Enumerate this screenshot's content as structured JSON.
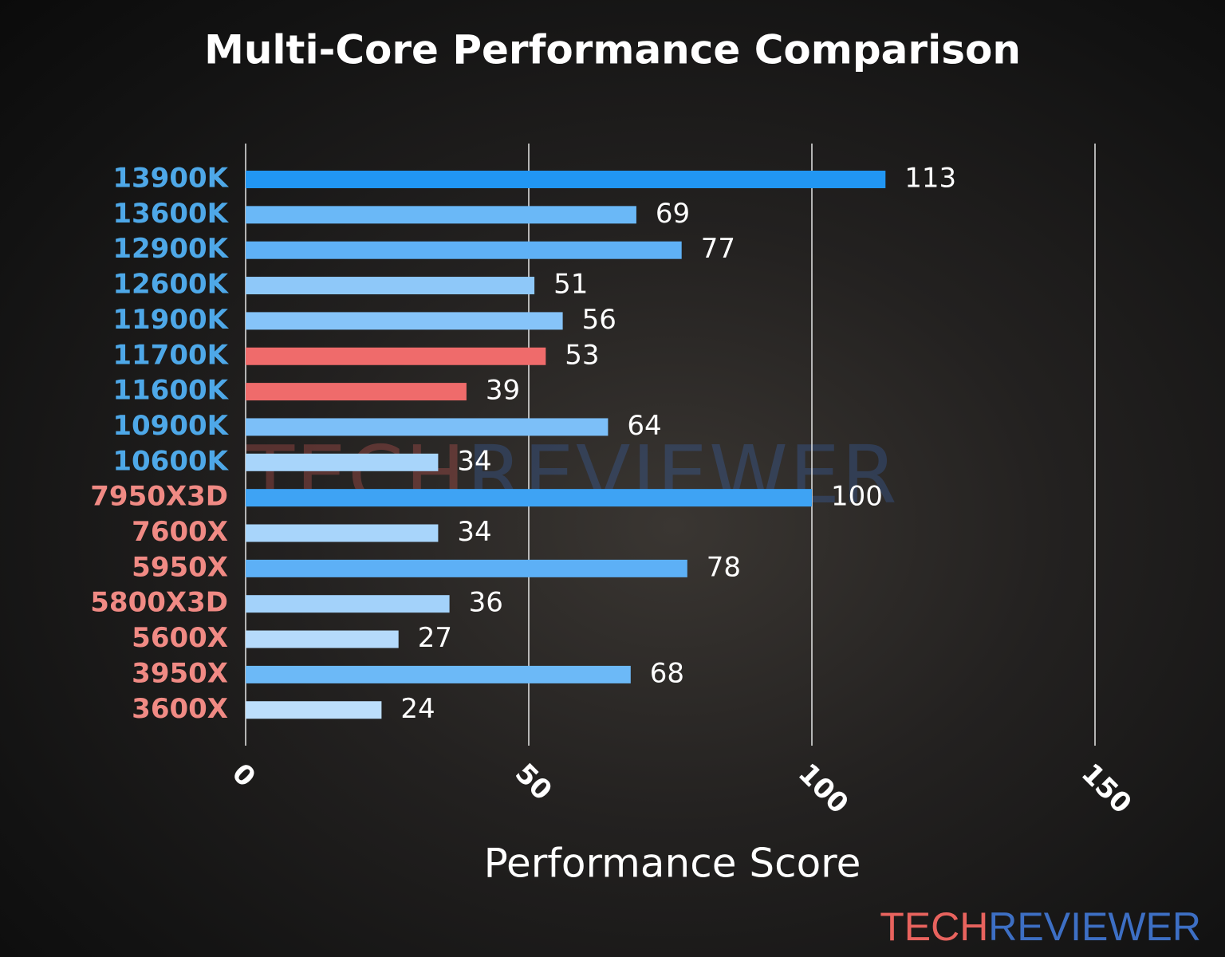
{
  "chart_data": {
    "type": "barh",
    "title": "Multi-Core Performance Comparison",
    "x_label": "Performance Score",
    "categories": [
      "13900K",
      "13600K",
      "12900K",
      "12600K",
      "11900K",
      "11700K",
      "11600K",
      "10900K",
      "10600K",
      "7950X3D",
      "7600X",
      "5950X",
      "5800X3D",
      "5600X",
      "3950X",
      "3600X"
    ],
    "values": [
      113,
      69,
      77,
      51,
      56,
      53,
      39,
      64,
      34,
      100,
      34,
      78,
      36,
      27,
      68,
      24
    ],
    "colors": [
      "#2196f3",
      "#6ab8f7",
      "#5fb1f6",
      "#8ec8f9",
      "#86c4f9",
      "#ef6b6b",
      "#ef6b6b",
      "#7cbff8",
      "#a8d5fb",
      "#3ea3f4",
      "#a8d5fb",
      "#5db0f6",
      "#a3d2fa",
      "#b5dafb",
      "#6cb9f7",
      "#bcdefb"
    ],
    "label_colors": [
      "#4ea8e8",
      "#4ea8e8",
      "#4ea8e8",
      "#4ea8e8",
      "#4ea8e8",
      "#4ea8e8",
      "#4ea8e8",
      "#4ea8e8",
      "#4ea8e8",
      "#f08a84",
      "#f08a84",
      "#f08a84",
      "#f08a84",
      "#f08a84",
      "#f08a84",
      "#f08a84"
    ],
    "xlim": [
      0,
      150
    ],
    "xticks": [
      0,
      50,
      100,
      150
    ],
    "grid": true,
    "watermark": [
      "TECH",
      "REVIEWER"
    ],
    "watermark_colors": [
      "#e8635e",
      "#3d6fc4"
    ]
  }
}
